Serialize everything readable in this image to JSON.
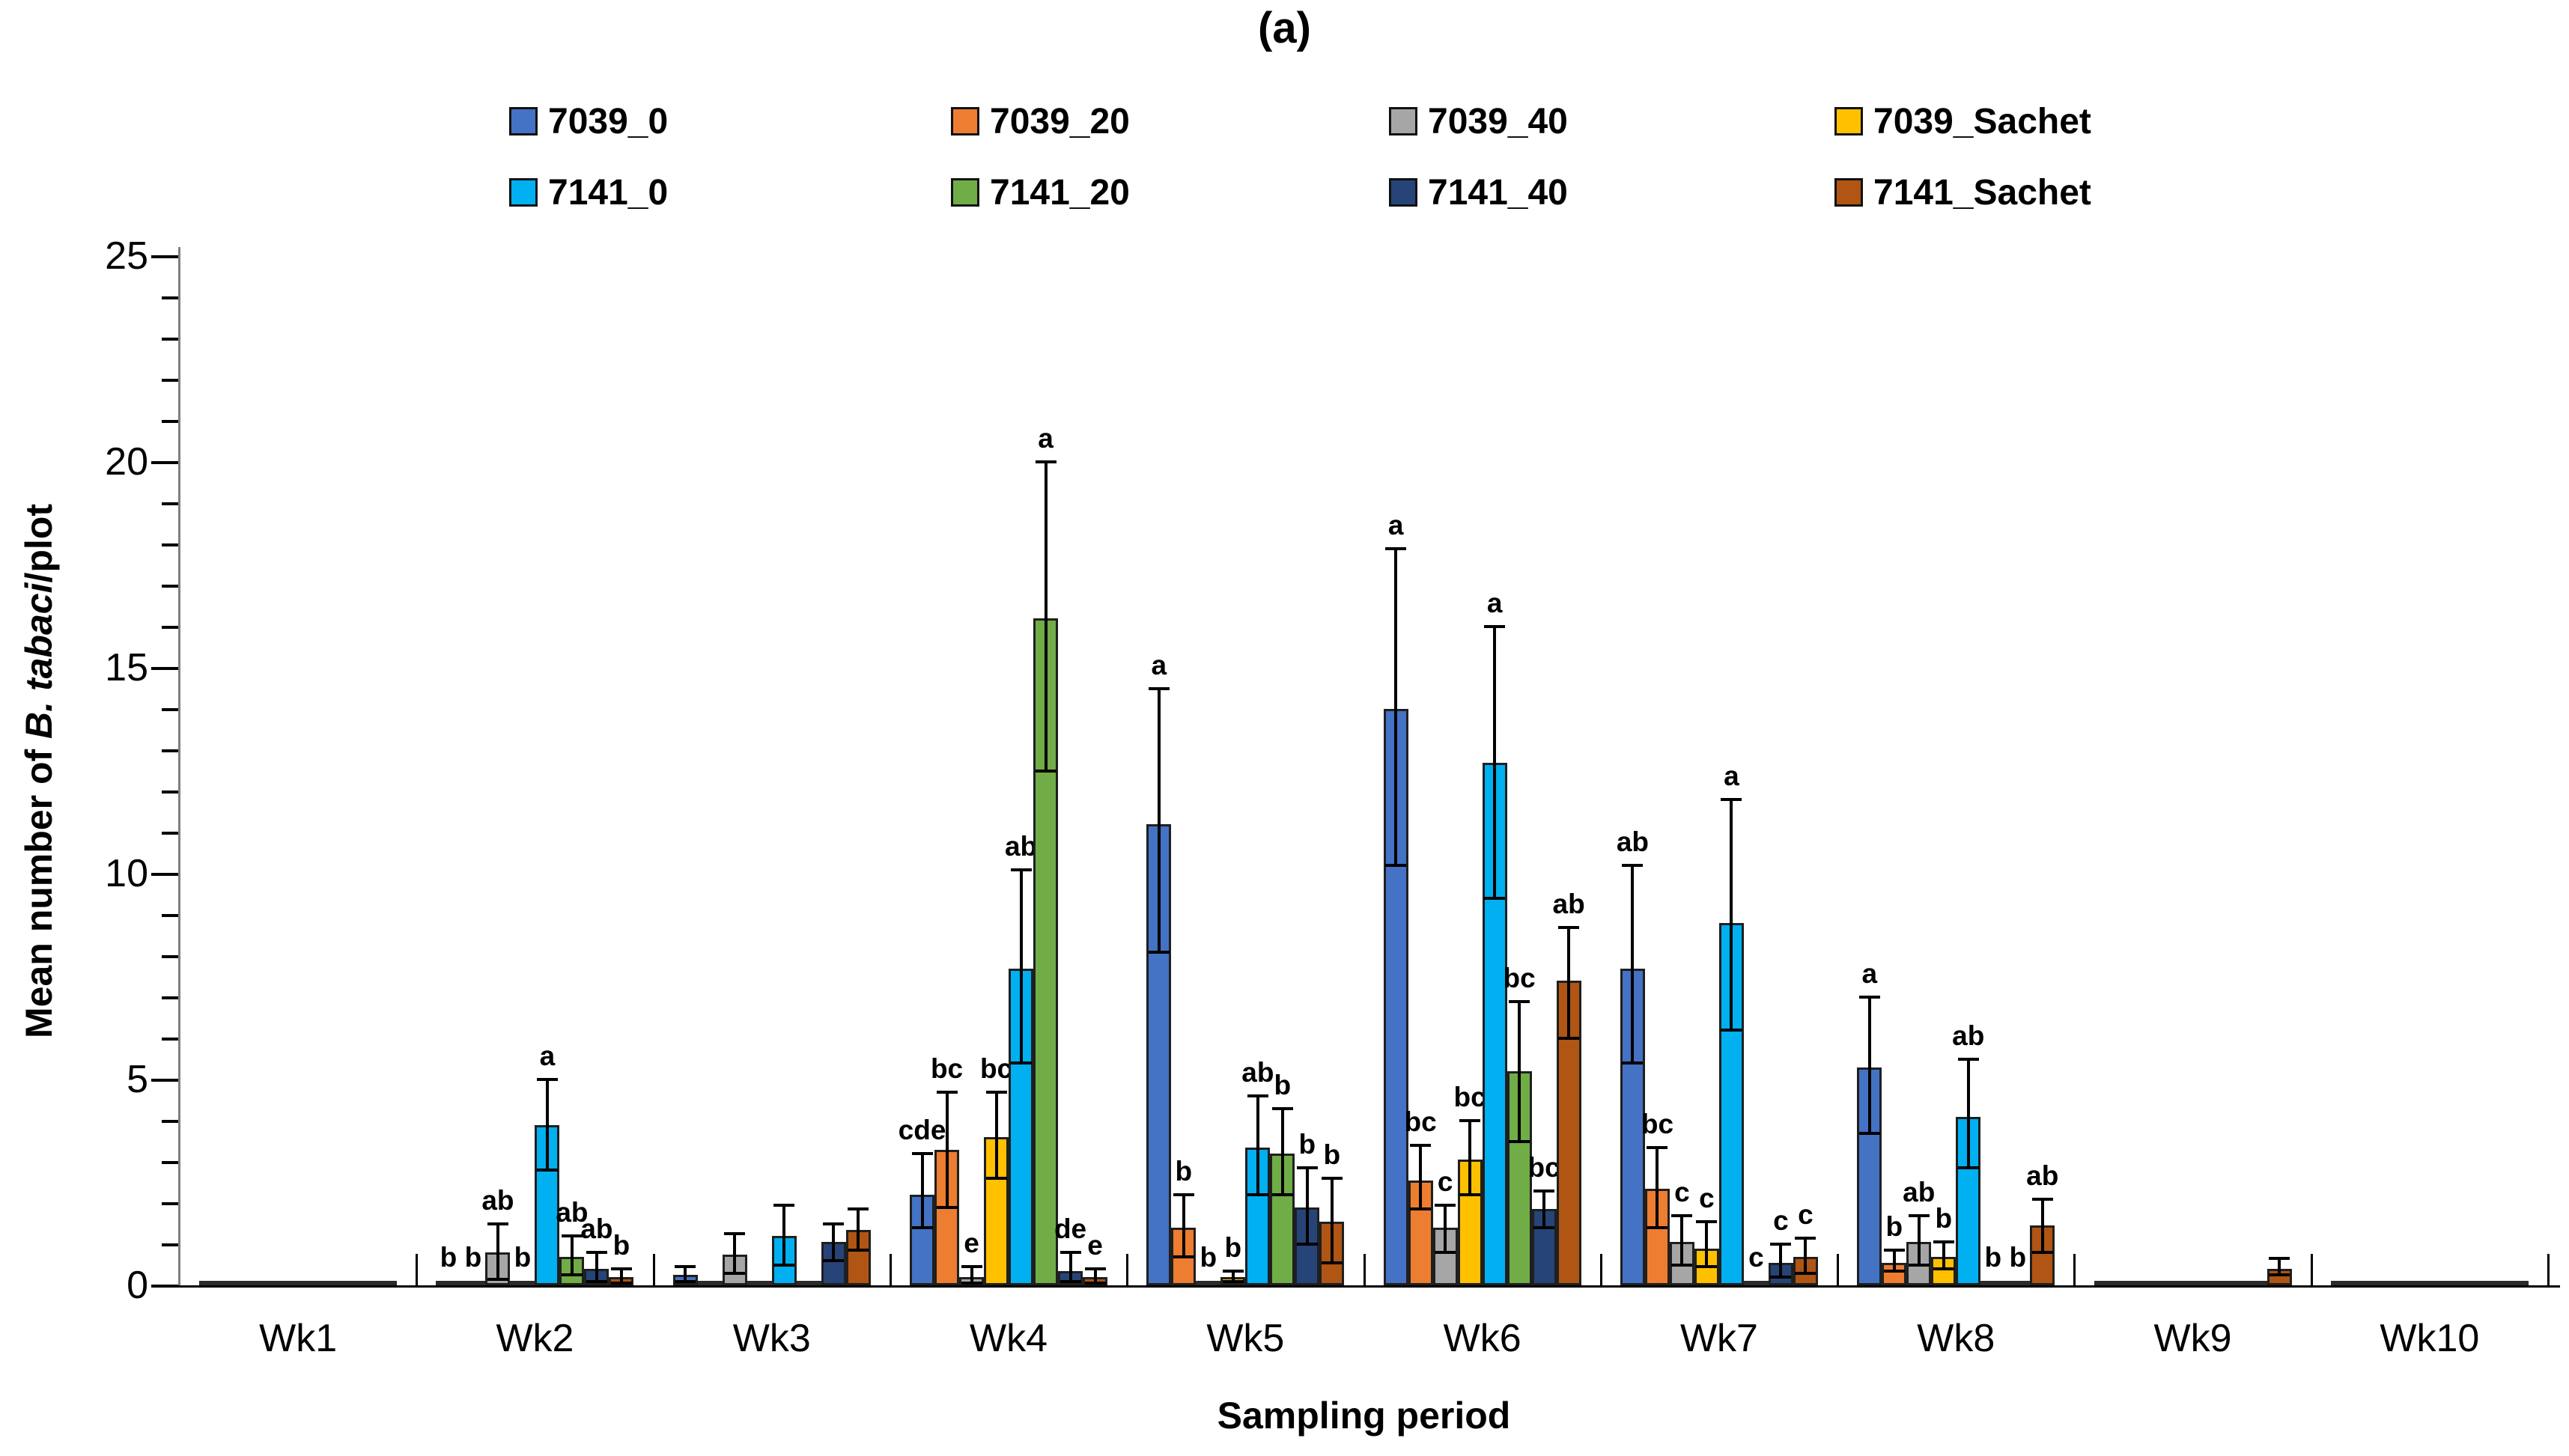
{
  "chart_data": {
    "type": "bar",
    "title": "(a)",
    "xlabel": "Sampling period",
    "ylabel_prefix": "Mean number of ",
    "ylabel_italic": "B. tabaci",
    "ylabel_suffix": "/plot",
    "ylim": [
      0,
      25
    ],
    "y_major_step": 5,
    "y_minor_step": 1,
    "y_ticks": [
      0,
      5,
      10,
      15,
      20,
      25
    ],
    "grid": "off",
    "legend_position": "top",
    "categories": [
      "Wk1",
      "Wk2",
      "Wk3",
      "Wk4",
      "Wk5",
      "Wk6",
      "Wk7",
      "Wk8",
      "Wk9",
      "Wk10"
    ],
    "series": [
      {
        "name": "7039_0",
        "color": "#4472C4",
        "values": [
          0.05,
          0.05,
          0.25,
          2.2,
          11.2,
          14.0,
          7.7,
          5.3,
          0.05,
          0.05
        ],
        "err_low": [
          null,
          null,
          0.1,
          1.4,
          8.1,
          10.2,
          5.4,
          3.7,
          null,
          null
        ],
        "err_high": [
          null,
          null,
          0.45,
          3.2,
          14.5,
          17.9,
          10.2,
          7.0,
          null,
          null
        ],
        "letters": [
          null,
          "b",
          null,
          "cde",
          "a",
          "a",
          "ab",
          "a",
          null,
          null
        ]
      },
      {
        "name": "7039_20",
        "color": "#ED7D31",
        "values": [
          0.05,
          0.05,
          0.05,
          3.3,
          1.4,
          2.55,
          2.35,
          0.55,
          0.05,
          0.05
        ],
        "err_low": [
          null,
          null,
          null,
          1.9,
          0.7,
          1.85,
          1.4,
          0.35,
          null,
          null
        ],
        "err_high": [
          null,
          null,
          null,
          4.7,
          2.2,
          3.4,
          3.35,
          0.85,
          null,
          null
        ],
        "letters": [
          null,
          "b",
          null,
          "bc",
          "b",
          "bc",
          "bc",
          "b",
          null,
          null
        ]
      },
      {
        "name": "7039_40",
        "color": "#A6A6A6",
        "values": [
          0.05,
          0.8,
          0.75,
          0.2,
          0.05,
          1.4,
          1.05,
          1.05,
          0.05,
          0.05
        ],
        "err_low": [
          null,
          0.15,
          0.3,
          0.05,
          null,
          0.8,
          0.5,
          0.5,
          null,
          null
        ],
        "err_high": [
          null,
          1.5,
          1.25,
          0.45,
          null,
          1.95,
          1.7,
          1.7,
          null,
          null
        ],
        "letters": [
          null,
          "ab",
          null,
          "e",
          "b",
          "c",
          "c",
          "ab",
          null,
          null
        ]
      },
      {
        "name": "7039_Sachet",
        "color": "#FFC000",
        "values": [
          0.05,
          0.05,
          0.05,
          3.6,
          0.2,
          3.05,
          0.9,
          0.7,
          0.05,
          0.05
        ],
        "err_low": [
          null,
          null,
          null,
          2.6,
          0.1,
          2.2,
          0.45,
          0.4,
          null,
          null
        ],
        "err_high": [
          null,
          null,
          null,
          4.7,
          0.35,
          4.0,
          1.55,
          1.05,
          null,
          null
        ],
        "letters": [
          null,
          "b",
          null,
          "bc",
          "b",
          "bc",
          "c",
          "b",
          null,
          null
        ]
      },
      {
        "name": "7141_0",
        "color": "#00B0F0",
        "values": [
          0.05,
          3.9,
          1.2,
          7.7,
          3.35,
          12.7,
          8.8,
          4.1,
          0.05,
          0.05
        ],
        "err_low": [
          null,
          2.8,
          0.5,
          5.4,
          2.2,
          9.4,
          6.2,
          2.85,
          null,
          null
        ],
        "err_high": [
          null,
          5.0,
          1.95,
          10.1,
          4.6,
          16.0,
          11.8,
          5.5,
          null,
          null
        ],
        "letters": [
          null,
          "a",
          null,
          "ab",
          "ab",
          "a",
          "a",
          "ab",
          null,
          null
        ]
      },
      {
        "name": "7141_20",
        "color": "#70AD47",
        "values": [
          0.05,
          0.7,
          0.05,
          16.2,
          3.2,
          5.2,
          0.05,
          0.05,
          0.05,
          0.05
        ],
        "err_low": [
          null,
          0.25,
          null,
          12.5,
          2.2,
          3.5,
          null,
          null,
          null,
          null
        ],
        "err_high": [
          null,
          1.2,
          null,
          20.0,
          4.3,
          6.9,
          null,
          null,
          null,
          null
        ],
        "letters": [
          null,
          "ab",
          null,
          "a",
          "b",
          "bc",
          "c",
          "b",
          null,
          null
        ]
      },
      {
        "name": "7141_40",
        "color": "#264478",
        "values": [
          0.05,
          0.4,
          1.05,
          0.35,
          1.9,
          1.85,
          0.55,
          0.05,
          0.05,
          0.05
        ],
        "err_low": [
          null,
          0.1,
          0.6,
          0.1,
          1.0,
          1.4,
          0.2,
          null,
          null,
          null
        ],
        "err_high": [
          null,
          0.8,
          1.5,
          0.8,
          2.85,
          2.3,
          1.0,
          null,
          null,
          null
        ],
        "letters": [
          null,
          "ab",
          null,
          "de",
          "b",
          "bc",
          "c",
          "b",
          null,
          null
        ]
      },
      {
        "name": "7141_Sachet",
        "color": "#B05513",
        "values": [
          0.05,
          0.2,
          1.35,
          0.2,
          1.55,
          7.4,
          0.7,
          1.45,
          0.4,
          0.05
        ],
        "err_low": [
          null,
          0.05,
          0.85,
          0.05,
          0.55,
          6.0,
          0.3,
          0.8,
          0.25,
          null
        ],
        "err_high": [
          null,
          0.4,
          1.85,
          0.4,
          2.6,
          8.7,
          1.15,
          2.1,
          0.65,
          null
        ],
        "letters": [
          null,
          "b",
          null,
          "e",
          "b",
          "ab",
          "c",
          "ab",
          null,
          null
        ]
      }
    ]
  }
}
